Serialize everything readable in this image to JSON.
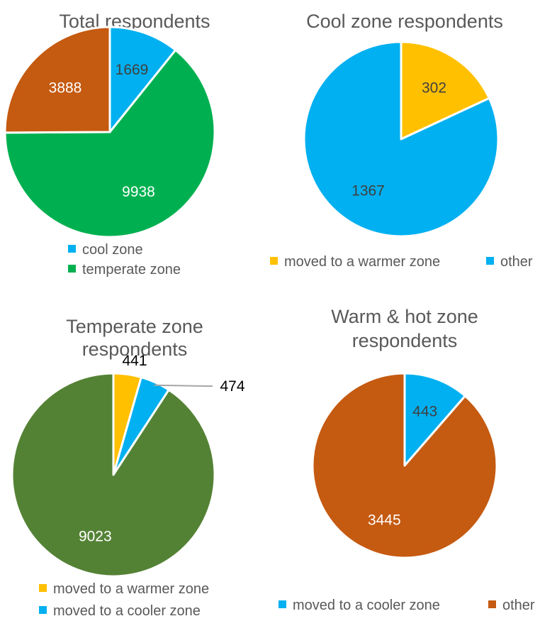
{
  "chart_data": [
    {
      "type": "pie",
      "title": [
        "Total respondents"
      ],
      "slices": [
        {
          "label": "cool zone",
          "value": 1669,
          "color": "#00b0f0",
          "label_color": "#404040"
        },
        {
          "label": "temperate zone",
          "value": 9938,
          "color": "#00b050",
          "label_color": "#ffffff"
        },
        {
          "label": "",
          "value": 3888,
          "color": "#c55a11",
          "label_color": "#ffffff"
        }
      ],
      "legend": [
        {
          "text": "cool zone",
          "color": "#00b0f0"
        },
        {
          "text": "temperate zone",
          "color": "#00b050"
        }
      ],
      "legend_placement": "bottom"
    },
    {
      "type": "pie",
      "title": [
        "Cool zone respondents"
      ],
      "slices": [
        {
          "label": "moved to a warmer zone",
          "value": 302,
          "color": "#ffc000",
          "label_color": "#404040"
        },
        {
          "label": "other",
          "value": 1367,
          "color": "#00b0f0",
          "label_color": "#404040"
        }
      ],
      "legend": [
        {
          "text": "moved to a warmer zone",
          "color": "#ffc000"
        },
        {
          "text": "other",
          "color": "#00b0f0"
        }
      ],
      "legend_placement": "bottom"
    },
    {
      "type": "pie",
      "title": [
        "Temperate zone",
        "respondents"
      ],
      "slices": [
        {
          "label": "moved to a warmer zone",
          "value": 441,
          "color": "#ffc000",
          "label_color": "#000000"
        },
        {
          "label": "moved to a cooler zone",
          "value": 474,
          "color": "#00b0f0",
          "label_color": "#000000"
        },
        {
          "label": "",
          "value": 9023,
          "color": "#548235",
          "label_color": "#ffffff"
        }
      ],
      "legend": [
        {
          "text": "moved to a warmer zone",
          "color": "#ffc000"
        },
        {
          "text": "moved to a cooler zone",
          "color": "#00b0f0"
        }
      ],
      "legend_placement": "bottom"
    },
    {
      "type": "pie",
      "title": [
        "Warm & hot zone",
        "respondents"
      ],
      "slices": [
        {
          "label": "moved to a cooler zone",
          "value": 443,
          "color": "#00b0f0",
          "label_color": "#404040"
        },
        {
          "label": "other",
          "value": 3445,
          "color": "#c55a11",
          "label_color": "#ffffff"
        }
      ],
      "legend": [
        {
          "text": "moved to a cooler zone",
          "color": "#00b0f0"
        },
        {
          "text": "other",
          "color": "#c55a11"
        }
      ],
      "legend_placement": "bottom"
    }
  ]
}
